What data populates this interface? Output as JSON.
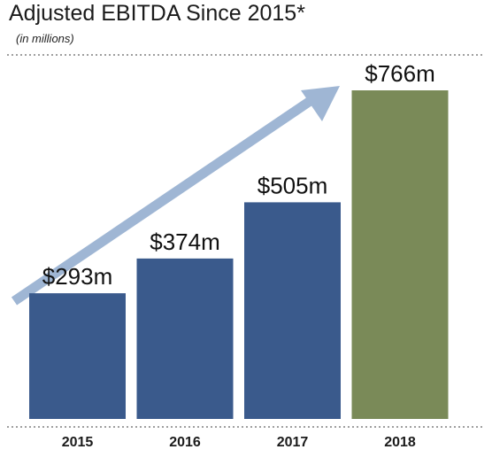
{
  "header": {
    "title": "Adjusted EBITDA Since 2015*",
    "subtitle": "(in millions)"
  },
  "colors": {
    "bar_primary": "#3a5a8c",
    "bar_highlight": "#7a8a58",
    "arrow": "#9fb6d4",
    "rule": "#666666"
  },
  "chart_data": {
    "type": "bar",
    "title": "Adjusted EBITDA Since 2015*",
    "subtitle": "(in millions)",
    "categories": [
      "2015",
      "2016",
      "2017",
      "2018"
    ],
    "values": [
      293,
      374,
      505,
      766
    ],
    "data_labels": [
      "$293m",
      "$374m",
      "$505m",
      "$766m"
    ],
    "highlight_index": 3,
    "ylim": [
      0,
      800
    ],
    "grid": false,
    "legend": "none",
    "annotations": [
      "upward trend arrow"
    ]
  }
}
